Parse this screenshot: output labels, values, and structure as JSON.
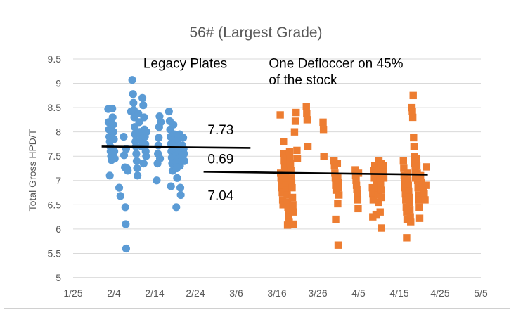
{
  "chart_data": {
    "type": "scatter",
    "title": "56# (Largest Grade)",
    "xlabel": "",
    "ylabel": "Total Gross HPD/T",
    "xlim_day": [
      0,
      100
    ],
    "ylim": [
      5,
      9.5
    ],
    "y_ticks": [
      5,
      5.5,
      6,
      6.5,
      7,
      7.5,
      8,
      8.5,
      9,
      9.5
    ],
    "y_tick_labels": [
      "5",
      "5.5",
      "6",
      "6.5",
      "7",
      "7.5",
      "8",
      "8.5",
      "9",
      "9.5"
    ],
    "x_tick_days": [
      0,
      10,
      20,
      30,
      40,
      50,
      60,
      70,
      80,
      90,
      100
    ],
    "x_tick_labels": [
      "1/25",
      "2/4",
      "2/14",
      "2/24",
      "3/6",
      "3/16",
      "3/26",
      "4/5",
      "4/15",
      "4/25",
      "5/5"
    ],
    "x_note": "x values are days after 1/25",
    "grid": "horizontal",
    "legend": "none",
    "colors": {
      "legacy": "#5b9bd5",
      "deflocc": "#ed7d31",
      "trend": "#000000",
      "grid": "#d9d9d9",
      "axis_text": "#595959"
    },
    "series": [
      {
        "name": "Legacy Plates",
        "marker": "circle",
        "points": [
          [
            8.6,
            8.47
          ],
          [
            8.7,
            8.2
          ],
          [
            8.8,
            8.05
          ],
          [
            8.9,
            7.9
          ],
          [
            9.0,
            7.8
          ],
          [
            9.1,
            7.7
          ],
          [
            9.2,
            7.6
          ],
          [
            9.3,
            7.5
          ],
          [
            9.4,
            7.42
          ],
          [
            9.0,
            7.1
          ],
          [
            9.6,
            8.48
          ],
          [
            9.7,
            8.3
          ],
          [
            9.8,
            8.15
          ],
          [
            9.9,
            8.0
          ],
          [
            10.0,
            7.85
          ],
          [
            10.1,
            7.6
          ],
          [
            10.2,
            7.45
          ],
          [
            11.3,
            6.85
          ],
          [
            11.6,
            6.68
          ],
          [
            12.4,
            7.9
          ],
          [
            12.5,
            7.52
          ],
          [
            12.7,
            7.27
          ],
          [
            12.8,
            6.45
          ],
          [
            12.9,
            6.1
          ],
          [
            13.0,
            7.65
          ],
          [
            13.0,
            5.6
          ],
          [
            13.2,
            7.25
          ],
          [
            13.4,
            7.2
          ],
          [
            14.2,
            8.42
          ],
          [
            14.5,
            9.07
          ],
          [
            14.7,
            8.78
          ],
          [
            14.8,
            8.6
          ],
          [
            14.9,
            8.45
          ],
          [
            15.0,
            8.3
          ],
          [
            15.1,
            8.1
          ],
          [
            15.2,
            7.95
          ],
          [
            15.3,
            7.8
          ],
          [
            15.4,
            7.7
          ],
          [
            15.5,
            7.55
          ],
          [
            15.6,
            7.4
          ],
          [
            15.7,
            7.25
          ],
          [
            15.8,
            7.1
          ],
          [
            16.0,
            8.38
          ],
          [
            16.2,
            8.2
          ],
          [
            16.4,
            8.0
          ],
          [
            16.6,
            7.85
          ],
          [
            16.8,
            7.7
          ],
          [
            17.0,
            8.7
          ],
          [
            17.2,
            8.55
          ],
          [
            17.4,
            8.3
          ],
          [
            17.5,
            8.05
          ],
          [
            17.6,
            7.9
          ],
          [
            17.7,
            7.75
          ],
          [
            17.8,
            7.6
          ],
          [
            17.9,
            7.5
          ],
          [
            18.0,
            8.0
          ],
          [
            17.3,
            7.35
          ],
          [
            20.5,
            7.0
          ],
          [
            20.7,
            7.35
          ],
          [
            20.8,
            7.55
          ],
          [
            20.9,
            7.72
          ],
          [
            21.0,
            7.88
          ],
          [
            21.1,
            8.1
          ],
          [
            21.2,
            8.32
          ],
          [
            21.3,
            7.45
          ],
          [
            21.5,
            8.2
          ],
          [
            23.5,
            8.42
          ],
          [
            23.7,
            8.22
          ],
          [
            23.8,
            8.05
          ],
          [
            23.9,
            7.9
          ],
          [
            24.0,
            7.75
          ],
          [
            24.1,
            7.6
          ],
          [
            24.2,
            7.47
          ],
          [
            24.3,
            7.35
          ],
          [
            24.4,
            7.2
          ],
          [
            24.0,
            6.88
          ],
          [
            24.6,
            8.15
          ],
          [
            24.8,
            7.95
          ],
          [
            25.0,
            7.8
          ],
          [
            25.1,
            7.65
          ],
          [
            25.2,
            7.5
          ],
          [
            25.3,
            7.38
          ],
          [
            25.4,
            7.25
          ],
          [
            25.5,
            7.05
          ],
          [
            25.3,
            6.45
          ],
          [
            25.7,
            7.85
          ],
          [
            25.8,
            7.68
          ],
          [
            25.9,
            7.55
          ],
          [
            26.0,
            7.45
          ],
          [
            26.1,
            7.95
          ],
          [
            26.2,
            7.3
          ],
          [
            26.3,
            6.85
          ],
          [
            26.4,
            6.7
          ],
          [
            26.5,
            7.4
          ],
          [
            26.6,
            7.6
          ],
          [
            26.8,
            7.72
          ],
          [
            27.0,
            7.88
          ],
          [
            27.2,
            7.55
          ],
          [
            27.3,
            7.4
          ],
          [
            27.1,
            7.65
          ],
          [
            26.7,
            7.52
          ]
        ]
      },
      {
        "name": "One Defloccer on 45% of the stock",
        "marker": "square",
        "points": [
          [
            50.8,
            8.35
          ],
          [
            50.9,
            7.15
          ],
          [
            51.0,
            7.05
          ],
          [
            51.1,
            6.95
          ],
          [
            51.2,
            6.85
          ],
          [
            51.3,
            6.75
          ],
          [
            51.4,
            6.6
          ],
          [
            51.5,
            6.5
          ],
          [
            51.6,
            7.8
          ],
          [
            51.7,
            7.55
          ],
          [
            51.8,
            7.4
          ],
          [
            51.9,
            7.3
          ],
          [
            52.0,
            7.25
          ],
          [
            52.1,
            7.1
          ],
          [
            52.2,
            7.0
          ],
          [
            52.3,
            6.9
          ],
          [
            52.4,
            6.8
          ],
          [
            52.5,
            6.7
          ],
          [
            52.6,
            6.55
          ],
          [
            52.7,
            6.45
          ],
          [
            52.8,
            6.35
          ],
          [
            52.9,
            6.25
          ],
          [
            53.0,
            6.15
          ],
          [
            52.6,
            6.08
          ],
          [
            53.1,
            7.6
          ],
          [
            53.2,
            7.45
          ],
          [
            53.3,
            7.35
          ],
          [
            53.4,
            7.2
          ],
          [
            53.5,
            7.05
          ],
          [
            53.6,
            6.95
          ],
          [
            53.7,
            6.85
          ],
          [
            53.8,
            6.65
          ],
          [
            53.9,
            6.5
          ],
          [
            54.0,
            6.35
          ],
          [
            54.1,
            6.1
          ],
          [
            54.3,
            8.0
          ],
          [
            54.5,
            8.22
          ],
          [
            54.7,
            8.4
          ],
          [
            54.9,
            7.62
          ],
          [
            55.0,
            7.45
          ],
          [
            57.2,
            8.52
          ],
          [
            57.3,
            8.38
          ],
          [
            57.4,
            8.25
          ],
          [
            57.6,
            7.7
          ],
          [
            61.3,
            8.2
          ],
          [
            61.4,
            8.05
          ],
          [
            61.5,
            7.5
          ],
          [
            64.0,
            7.4
          ],
          [
            64.1,
            7.3
          ],
          [
            64.2,
            7.15
          ],
          [
            64.3,
            7.05
          ],
          [
            64.4,
            6.9
          ],
          [
            64.5,
            6.8
          ],
          [
            64.4,
            6.2
          ],
          [
            64.8,
            7.35
          ],
          [
            64.9,
            7.05
          ],
          [
            65.0,
            6.95
          ],
          [
            65.1,
            6.85
          ],
          [
            65.2,
            6.7
          ],
          [
            64.9,
            6.52
          ],
          [
            65.0,
            5.67
          ],
          [
            69.2,
            7.22
          ],
          [
            69.3,
            7.1
          ],
          [
            69.4,
            7.0
          ],
          [
            69.5,
            6.9
          ],
          [
            69.6,
            6.82
          ],
          [
            69.7,
            6.72
          ],
          [
            69.8,
            6.6
          ],
          [
            69.9,
            6.42
          ],
          [
            70.0,
            7.15
          ],
          [
            73.4,
            6.85
          ],
          [
            73.5,
            6.72
          ],
          [
            73.6,
            6.6
          ],
          [
            73.5,
            6.25
          ],
          [
            73.8,
            7.2
          ],
          [
            73.9,
            7.05
          ],
          [
            74.0,
            7.3
          ],
          [
            74.2,
            7.25
          ],
          [
            74.3,
            7.15
          ],
          [
            74.4,
            7.05
          ],
          [
            74.5,
            6.98
          ],
          [
            74.6,
            6.9
          ],
          [
            74.7,
            6.8
          ],
          [
            74.8,
            6.7
          ],
          [
            74.9,
            6.55
          ],
          [
            74.3,
            6.3
          ],
          [
            75.0,
            7.4
          ],
          [
            75.1,
            7.22
          ],
          [
            75.2,
            7.1
          ],
          [
            75.3,
            7.0
          ],
          [
            75.4,
            6.92
          ],
          [
            75.5,
            6.8
          ],
          [
            75.6,
            6.65
          ],
          [
            75.3,
            6.35
          ],
          [
            75.6,
            6.02
          ],
          [
            76.0,
            7.3
          ],
          [
            76.1,
            7.18
          ],
          [
            76.2,
            7.05
          ],
          [
            75.5,
            7.35
          ],
          [
            81.0,
            7.4
          ],
          [
            81.1,
            7.25
          ],
          [
            81.2,
            7.1
          ],
          [
            81.3,
            6.98
          ],
          [
            81.4,
            6.85
          ],
          [
            81.5,
            6.72
          ],
          [
            81.6,
            6.6
          ],
          [
            81.7,
            6.45
          ],
          [
            81.8,
            6.35
          ],
          [
            81.9,
            6.2
          ],
          [
            81.8,
            5.82
          ],
          [
            82.0,
            7.15
          ],
          [
            82.1,
            7.0
          ],
          [
            82.2,
            6.9
          ],
          [
            82.3,
            6.78
          ],
          [
            82.4,
            6.65
          ],
          [
            82.5,
            6.55
          ],
          [
            82.6,
            6.4
          ],
          [
            82.7,
            6.25
          ],
          [
            82.8,
            6.15
          ],
          [
            83.1,
            8.5
          ],
          [
            83.2,
            8.42
          ],
          [
            83.3,
            8.3
          ],
          [
            83.4,
            8.75
          ],
          [
            83.5,
            7.88
          ],
          [
            83.6,
            7.7
          ],
          [
            83.7,
            7.5
          ],
          [
            83.8,
            7.35
          ],
          [
            83.9,
            7.2
          ],
          [
            84.0,
            7.05
          ],
          [
            84.2,
            7.45
          ],
          [
            84.3,
            7.3
          ],
          [
            84.4,
            7.15
          ],
          [
            84.5,
            7.0
          ],
          [
            84.6,
            6.85
          ],
          [
            84.7,
            6.7
          ],
          [
            84.8,
            6.6
          ],
          [
            84.9,
            6.45
          ],
          [
            85.0,
            6.22
          ],
          [
            85.2,
            7.1
          ],
          [
            85.4,
            6.95
          ],
          [
            86.0,
            6.85
          ],
          [
            86.1,
            6.72
          ],
          [
            86.3,
            6.6
          ],
          [
            86.5,
            6.9
          ],
          [
            86.6,
            7.28
          ]
        ]
      }
    ],
    "trend_lines": [
      {
        "name": "legacy-trend",
        "x1": 7.0,
        "x2": 43.5,
        "y1": 7.7,
        "y2": 7.67
      },
      {
        "name": "deflocc-trend",
        "x1": 32.0,
        "x2": 87.0,
        "y1": 7.18,
        "y2": 7.12
      }
    ],
    "annotations": [
      {
        "name": "legacy-label",
        "text": "Legacy Plates",
        "x": 27.5,
        "y": 9.32,
        "anchor": "middle"
      },
      {
        "name": "deflocc-label-line1",
        "text": "One Defloccer on 45%",
        "x": 48.0,
        "y": 9.32,
        "anchor": "start"
      },
      {
        "name": "deflocc-label-line2",
        "text": "of the stock",
        "x": 48.0,
        "y": 8.98,
        "anchor": "start"
      },
      {
        "name": "legacy-mean",
        "text": "7.73",
        "x": 33.0,
        "y": 7.95,
        "anchor": "start"
      },
      {
        "name": "difference",
        "text": "0.69",
        "x": 33.0,
        "y": 7.35,
        "anchor": "start"
      },
      {
        "name": "deflocc-mean",
        "text": "7.04",
        "x": 33.0,
        "y": 6.6,
        "anchor": "start"
      }
    ]
  }
}
